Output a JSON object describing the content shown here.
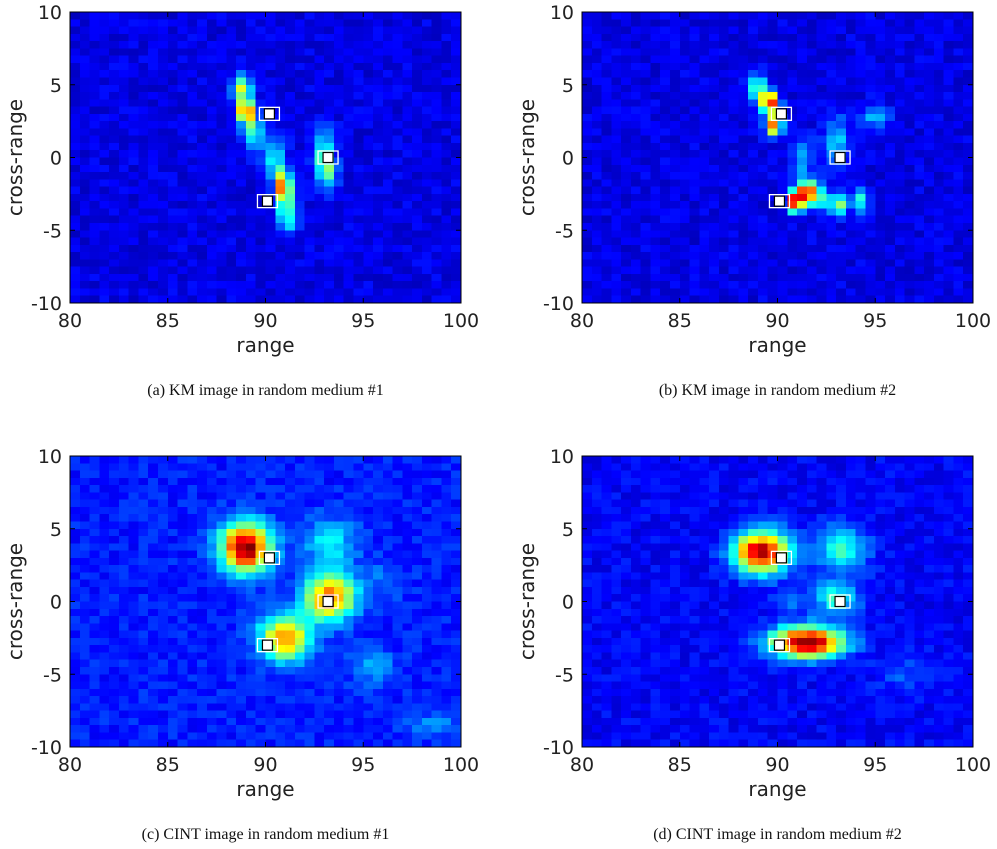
{
  "colormap": "jet",
  "chart_data": [
    {
      "type": "heatmap",
      "panel": "a",
      "caption": "(a)  KM image in random medium #1",
      "xlabel": "range",
      "ylabel": "cross-range",
      "xlim": [
        80,
        100
      ],
      "ylim": [
        -10,
        10
      ],
      "x_ticks": [
        "80",
        "85",
        "90",
        "95",
        "100"
      ],
      "y_ticks": [
        "10",
        "5",
        "0",
        "-5",
        "-10"
      ],
      "grid": false,
      "grid_size": [
        40,
        40
      ],
      "background": 0.1,
      "blobs": [
        {
          "x": 89.0,
          "y": 3.2,
          "sx": 0.25,
          "sy": 0.6,
          "v": 0.85
        },
        {
          "x": 88.8,
          "y": 4.8,
          "sx": 0.35,
          "sy": 0.6,
          "v": 0.45
        },
        {
          "x": 89.4,
          "y": 1.8,
          "sx": 0.35,
          "sy": 0.8,
          "v": 0.35
        },
        {
          "x": 90.9,
          "y": -2.0,
          "sx": 0.3,
          "sy": 0.8,
          "v": 0.7
        },
        {
          "x": 91.1,
          "y": -4.0,
          "sx": 0.35,
          "sy": 0.8,
          "v": 0.35
        },
        {
          "x": 90.4,
          "y": 0.0,
          "sx": 0.4,
          "sy": 1.0,
          "v": 0.25
        },
        {
          "x": 93.0,
          "y": 0.3,
          "sx": 0.35,
          "sy": 1.1,
          "v": 0.35
        },
        {
          "x": 93.2,
          "y": -1.2,
          "sx": 0.35,
          "sy": 0.8,
          "v": 0.25
        }
      ],
      "targets": [
        {
          "x": 90.2,
          "y": 3.0
        },
        {
          "x": 93.2,
          "y": 0.0
        },
        {
          "x": 90.1,
          "y": -3.0
        }
      ]
    },
    {
      "type": "heatmap",
      "panel": "b",
      "caption": "(b)  KM image in random medium #2",
      "xlabel": "range",
      "ylabel": "cross-range",
      "xlim": [
        80,
        100
      ],
      "ylim": [
        -10,
        10
      ],
      "x_ticks": [
        "80",
        "85",
        "90",
        "95",
        "100"
      ],
      "y_ticks": [
        "10",
        "5",
        "0",
        "-5",
        "-10"
      ],
      "grid": false,
      "grid_size": [
        40,
        40
      ],
      "background": 0.1,
      "blobs": [
        {
          "x": 89.6,
          "y": 3.8,
          "sx": 0.3,
          "sy": 0.5,
          "v": 0.85
        },
        {
          "x": 89.8,
          "y": 2.2,
          "sx": 0.3,
          "sy": 0.5,
          "v": 0.7
        },
        {
          "x": 89.0,
          "y": 4.8,
          "sx": 0.35,
          "sy": 0.6,
          "v": 0.35
        },
        {
          "x": 90.9,
          "y": -3.0,
          "sx": 0.3,
          "sy": 0.5,
          "v": 0.95
        },
        {
          "x": 91.5,
          "y": -2.3,
          "sx": 0.3,
          "sy": 0.5,
          "v": 0.75
        },
        {
          "x": 92.1,
          "y": -2.8,
          "sx": 0.35,
          "sy": 0.6,
          "v": 0.35
        },
        {
          "x": 93.1,
          "y": -3.2,
          "sx": 0.3,
          "sy": 0.5,
          "v": 0.45
        },
        {
          "x": 93.0,
          "y": 1.0,
          "sx": 0.4,
          "sy": 1.3,
          "v": 0.25
        },
        {
          "x": 94.2,
          "y": -3.0,
          "sx": 0.3,
          "sy": 0.6,
          "v": 0.3
        },
        {
          "x": 95.0,
          "y": 2.8,
          "sx": 0.5,
          "sy": 0.6,
          "v": 0.2
        },
        {
          "x": 91.3,
          "y": 0.0,
          "sx": 0.4,
          "sy": 1.0,
          "v": 0.2
        }
      ],
      "targets": [
        {
          "x": 90.2,
          "y": 3.0
        },
        {
          "x": 93.2,
          "y": 0.0
        },
        {
          "x": 90.1,
          "y": -3.0
        }
      ]
    },
    {
      "type": "heatmap",
      "panel": "c",
      "caption": "(c)  CINT image in random medium #1",
      "xlabel": "range",
      "ylabel": "cross-range",
      "xlim": [
        80,
        100
      ],
      "ylim": [
        -10,
        10
      ],
      "x_ticks": [
        "80",
        "85",
        "90",
        "95",
        "100"
      ],
      "y_ticks": [
        "10",
        "5",
        "0",
        "-5",
        "-10"
      ],
      "grid": false,
      "grid_size": [
        40,
        40
      ],
      "background": 0.15,
      "blobs": [
        {
          "x": 89.0,
          "y": 3.7,
          "sx": 0.9,
          "sy": 1.2,
          "v": 0.85
        },
        {
          "x": 91.0,
          "y": -2.5,
          "sx": 0.9,
          "sy": 1.1,
          "v": 0.6
        },
        {
          "x": 93.3,
          "y": 0.3,
          "sx": 0.9,
          "sy": 1.1,
          "v": 0.65
        },
        {
          "x": 93.3,
          "y": 4.0,
          "sx": 0.9,
          "sy": 1.2,
          "v": 0.22
        },
        {
          "x": 95.5,
          "y": -4.5,
          "sx": 0.8,
          "sy": 0.8,
          "v": 0.15
        },
        {
          "x": 98.5,
          "y": -8.5,
          "sx": 1.0,
          "sy": 0.6,
          "v": 0.12
        },
        {
          "x": 96.0,
          "y": 1.5,
          "sx": 0.8,
          "sy": 1.0,
          "v": 0.08
        }
      ],
      "targets": [
        {
          "x": 90.2,
          "y": 3.0
        },
        {
          "x": 93.2,
          "y": 0.0
        },
        {
          "x": 90.1,
          "y": -3.0
        }
      ]
    },
    {
      "type": "heatmap",
      "panel": "d",
      "caption": "(d)  CINT image in random medium #2",
      "xlabel": "range",
      "ylabel": "cross-range",
      "xlim": [
        80,
        100
      ],
      "ylim": [
        -10,
        10
      ],
      "x_ticks": [
        "80",
        "85",
        "90",
        "95",
        "100"
      ],
      "y_ticks": [
        "10",
        "5",
        "0",
        "-5",
        "-10"
      ],
      "grid": false,
      "grid_size": [
        40,
        40
      ],
      "background": 0.12,
      "blobs": [
        {
          "x": 89.2,
          "y": 3.4,
          "sx": 1.0,
          "sy": 1.0,
          "v": 0.85
        },
        {
          "x": 91.5,
          "y": -2.8,
          "sx": 1.3,
          "sy": 0.75,
          "v": 0.9
        },
        {
          "x": 93.0,
          "y": 0.2,
          "sx": 0.8,
          "sy": 0.8,
          "v": 0.3
        },
        {
          "x": 93.3,
          "y": 3.6,
          "sx": 0.9,
          "sy": 1.1,
          "v": 0.3
        },
        {
          "x": 90.5,
          "y": 0.0,
          "sx": 0.6,
          "sy": 0.6,
          "v": 0.1
        },
        {
          "x": 96.5,
          "y": -5.0,
          "sx": 1.0,
          "sy": 1.0,
          "v": 0.08
        }
      ],
      "targets": [
        {
          "x": 90.2,
          "y": 3.0
        },
        {
          "x": 93.2,
          "y": 0.0
        },
        {
          "x": 90.1,
          "y": -3.0
        }
      ]
    }
  ]
}
